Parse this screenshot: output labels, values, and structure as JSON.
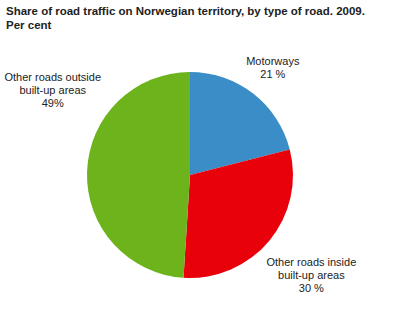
{
  "chart_data": {
    "type": "pie",
    "title": "Share of road traffic on Norwegian territory, by type of road. 2009.",
    "subtitle": "Per cent",
    "categories": [
      "Motorways",
      "Other roads inside built-up areas",
      "Other roads outside built-up areas"
    ],
    "values": [
      21,
      30,
      49
    ],
    "value_labels": [
      "21 %",
      "30 %",
      "49%"
    ],
    "colors": [
      "#3a8dc6",
      "#e8000b",
      "#6cb31c"
    ],
    "data_labels": true
  }
}
